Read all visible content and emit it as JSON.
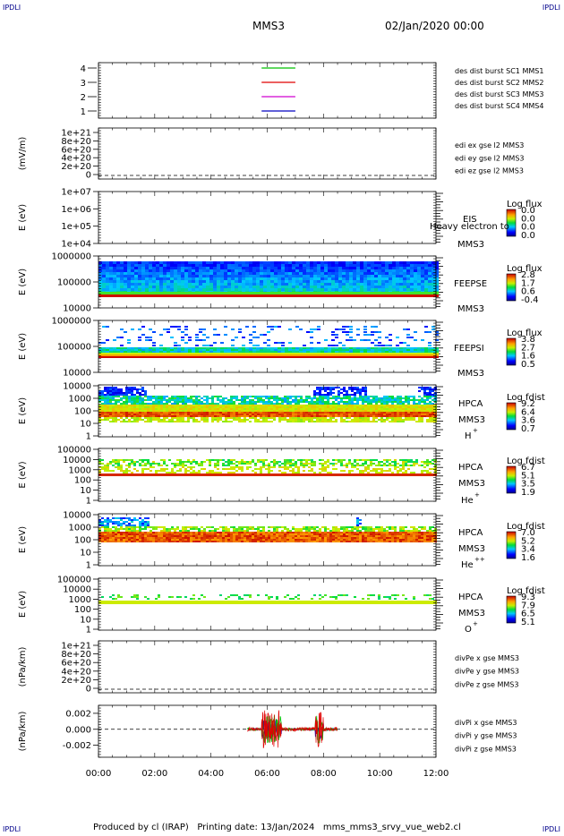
{
  "corner_tl": "IPDLI",
  "corner_tr": "IPDLI",
  "corner_bl": "IPDLI",
  "corner_br": "IPDLI",
  "title": "MMS3",
  "date": "02/Jan/2020 00:00",
  "footer": "Produced by cl (IRAP)   Printing date: 13/Jan/2024   mms_mms3_srvy_vue_web2.cl",
  "colors": {
    "red": "#e00000",
    "green": "#00c000",
    "blue": "#0000c0",
    "magenta": "#d000d0"
  },
  "chart_data": {
    "type": "heatmap",
    "x_ticks": [
      "00:00",
      "02:00",
      "04:00",
      "06:00",
      "08:00",
      "10:00",
      "12:00"
    ],
    "xlim_hours": [
      0,
      12
    ],
    "panels": [
      {
        "id": "p1",
        "ylabel": "",
        "yticks": [
          "1",
          "2",
          "3",
          "4"
        ],
        "ylim": [
          0.5,
          4.5
        ],
        "legend": [
          {
            "text": "des dist burst SC1 MMS1",
            "color": "#0000c0"
          },
          {
            "text": "des dist burst SC2 MMS2",
            "color": "#d000d0"
          },
          {
            "text": "des dist burst SC3 MMS3",
            "color": "#e00000"
          },
          {
            "text": "des dist burst SC4 MMS4",
            "color": "#00c000"
          }
        ],
        "burst_hours": [
          5.8,
          7.0
        ]
      },
      {
        "id": "p2",
        "ylabel": "(mV/m)",
        "yticks": [
          "0",
          "2e+20",
          "4e+20",
          "6e+20",
          "8e+20",
          "1e+21"
        ],
        "legend": [
          {
            "text": "edi ex gse l2 MMS3",
            "color": "#e00000"
          },
          {
            "text": "edi ey gse l2 MMS3",
            "color": "#00c000"
          },
          {
            "text": "edi ez gse l2 MMS3",
            "color": "#0000c0"
          }
        ]
      },
      {
        "id": "p3",
        "ylabel": "E (eV)",
        "yticks": [
          "1e+04",
          "1e+05",
          "1e+06",
          "1e+07"
        ],
        "inst": [
          "EIS",
          "MMS3"
        ],
        "overlay": "Heavy electron to",
        "cbar": {
          "title": "Log flux",
          "ticks": [
            "0.0",
            "0.0",
            "0.0",
            "0.0"
          ]
        }
      },
      {
        "id": "p4",
        "ylabel": "E (eV)",
        "yticks": [
          "10000",
          "100000",
          "1000000"
        ],
        "inst": [
          "FEEPSE",
          "MMS3"
        ],
        "cbar": {
          "title": "Log flux",
          "ticks": [
            "2.8",
            "1.7",
            "0.6",
            "-0.4"
          ]
        }
      },
      {
        "id": "p5",
        "ylabel": "E (eV)",
        "yticks": [
          "10000",
          "100000",
          "1000000"
        ],
        "inst": [
          "FEEPSI",
          "MMS3"
        ],
        "cbar": {
          "title": "Log flux",
          "ticks": [
            "3.8",
            "2.7",
            "1.6",
            "0.5"
          ]
        }
      },
      {
        "id": "p6",
        "ylabel": "E (eV)",
        "yticks": [
          "1",
          "10",
          "100",
          "1000",
          "10000"
        ],
        "inst": [
          "HPCA",
          "MMS3",
          "H",
          "+"
        ],
        "cbar": {
          "title": "Log fdist",
          "ticks": [
            "9.2",
            "6.4",
            "3.6",
            "0.7"
          ]
        }
      },
      {
        "id": "p7",
        "ylabel": "E (eV)",
        "yticks": [
          "1",
          "10",
          "100",
          "1000",
          "10000",
          "100000"
        ],
        "inst": [
          "HPCA",
          "MMS3",
          "He",
          "+"
        ],
        "cbar": {
          "title": "Log fdist",
          "ticks": [
            "6.7",
            "5.1",
            "3.5",
            "1.9"
          ]
        }
      },
      {
        "id": "p8",
        "ylabel": "E (eV)",
        "yticks": [
          "1",
          "10",
          "100",
          "1000",
          "10000"
        ],
        "inst": [
          "HPCA",
          "MMS3",
          "He",
          "++"
        ],
        "cbar": {
          "title": "Log fdist",
          "ticks": [
            "7.0",
            "5.2",
            "3.4",
            "1.6"
          ]
        }
      },
      {
        "id": "p9",
        "ylabel": "E (eV)",
        "yticks": [
          "1",
          "10",
          "100",
          "1000",
          "10000",
          "100000"
        ],
        "inst": [
          "HPCA",
          "MMS3",
          "O",
          "+"
        ],
        "cbar": {
          "title": "Log fdist",
          "ticks": [
            "9.3",
            "7.9",
            "6.5",
            "5.1"
          ]
        }
      },
      {
        "id": "p10",
        "ylabel": "(nPa/km)",
        "yticks": [
          "0",
          "2e+20",
          "4e+20",
          "6e+20",
          "8e+20",
          "1e+21"
        ],
        "legend": [
          {
            "text": "divPe x gse MMS3",
            "color": "#e00000"
          },
          {
            "text": "divPe y gse MMS3",
            "color": "#00c000"
          },
          {
            "text": "divPe z gse MMS3",
            "color": "#0000c0"
          }
        ]
      },
      {
        "id": "p11",
        "ylabel": "(nPa/km)",
        "yticks": [
          "-0.002",
          "0.000",
          "0.002"
        ],
        "ylim": [
          -0.0035,
          0.003
        ],
        "legend": [
          {
            "text": "divPi x gse MMS3",
            "color": "#e00000"
          },
          {
            "text": "divPi y gse MMS3",
            "color": "#00c000"
          },
          {
            "text": "divPi z gse MMS3",
            "color": "#0000c0"
          }
        ],
        "active_hours": [
          5.3,
          8.5
        ]
      }
    ]
  }
}
